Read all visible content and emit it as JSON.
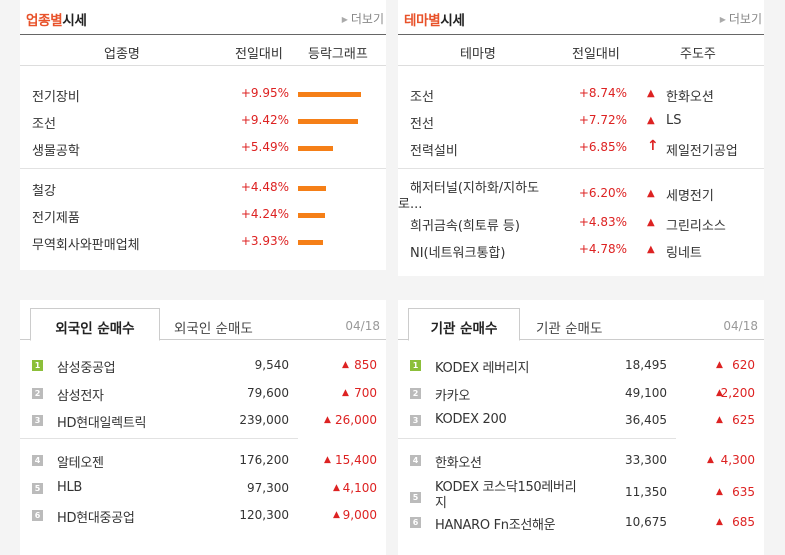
{
  "industry": {
    "title_accent": "업종별",
    "title_rest": "시세",
    "more": "더보기",
    "headers": [
      "업종명",
      "전일대비",
      "등락그래프"
    ],
    "rows": [
      {
        "name": "전기장비",
        "change": "+9.95%",
        "pct": 9.95
      },
      {
        "name": "조선",
        "change": "+9.42%",
        "pct": 9.42
      },
      {
        "name": "생물공학",
        "change": "+5.49%",
        "pct": 5.49
      },
      {
        "name": "철강",
        "change": "+4.48%",
        "pct": 4.48
      },
      {
        "name": "전기제품",
        "change": "+4.24%",
        "pct": 4.24
      },
      {
        "name": "무역회사와판매업체",
        "change": "+3.93%",
        "pct": 3.93
      }
    ]
  },
  "theme": {
    "title_accent": "테마별",
    "title_rest": "시세",
    "more": "더보기",
    "headers": [
      "테마명",
      "전일대비",
      "주도주"
    ],
    "rows": [
      {
        "name": "조선",
        "change": "+8.74%",
        "leader": "한화오션",
        "icon": "triangle-up"
      },
      {
        "name": "전선",
        "change": "+7.72%",
        "leader": "LS",
        "icon": "triangle-up"
      },
      {
        "name": "전력설비",
        "change": "+6.85%",
        "leader": "제일전기공업",
        "icon": "arrow-up"
      },
      {
        "name_line1": "해저터널(지하화/지하도",
        "name_line2": "로...",
        "change": "+6.20%",
        "leader": "세명전기",
        "icon": "triangle-up"
      },
      {
        "name": "희귀금속(희토류 등)",
        "change": "+4.83%",
        "leader": "그린리소스",
        "icon": "triangle-up"
      },
      {
        "name": "NI(네트워크통합)",
        "change": "+4.78%",
        "leader": "링네트",
        "icon": "triangle-up"
      }
    ]
  },
  "foreign": {
    "tab_active": "외국인 순매수",
    "tab_other": "외국인 순매도",
    "date": "04/18",
    "rows": [
      {
        "rank": "1",
        "name": "삼성중공업",
        "price": "9,540",
        "diff": "850"
      },
      {
        "rank": "2",
        "name": "삼성전자",
        "price": "79,600",
        "diff": "700"
      },
      {
        "rank": "3",
        "name": "HD현대일렉트릭",
        "price": "239,000",
        "diff": "26,000"
      },
      {
        "rank": "4",
        "name": "알테오젠",
        "price": "176,200",
        "diff": "15,400"
      },
      {
        "rank": "5",
        "name": "HLB",
        "price": "97,300",
        "diff": "4,100"
      },
      {
        "rank": "6",
        "name": "HD현대중공업",
        "price": "120,300",
        "diff": "9,000"
      }
    ]
  },
  "institution": {
    "tab_active": "기관 순매수",
    "tab_other": "기관 순매도",
    "date": "04/18",
    "rows": [
      {
        "rank": "1",
        "name": "KODEX 레버리지",
        "price": "18,495",
        "diff": "620"
      },
      {
        "rank": "2",
        "name": "카카오",
        "price": "49,100",
        "diff": "2,200"
      },
      {
        "rank": "3",
        "name": "KODEX 200",
        "price": "36,405",
        "diff": "625"
      },
      {
        "rank": "4",
        "name": "한화오션",
        "price": "33,300",
        "diff": "4,300"
      },
      {
        "rank": "5",
        "name_line1": "KODEX 코스닥150레버리",
        "name_line2": "지",
        "price": "11,350",
        "diff": "635"
      },
      {
        "rank": "6",
        "name": "HANARO Fn조선해운",
        "price": "10,675",
        "diff": "685"
      }
    ]
  },
  "colors": {
    "accent": "#e8522a",
    "up": "#dd2222",
    "bar": "#f57f17",
    "rank_first": "#8cbf3a",
    "rank_other": "#bbbbbb"
  }
}
